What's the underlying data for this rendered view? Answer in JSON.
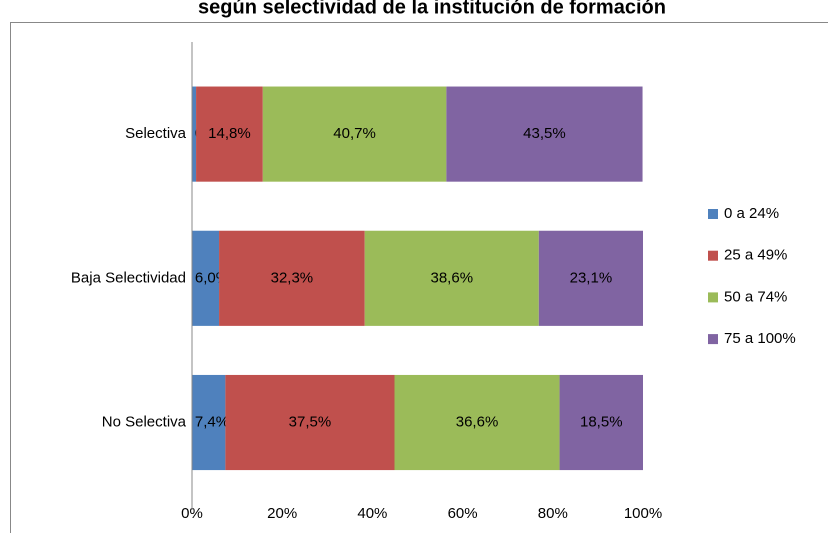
{
  "chart_data": {
    "type": "stacked_barh",
    "title": "según selectividad de la institución de formación",
    "categories": [
      "Selectiva",
      "Baja Selectividad",
      "No Selectiva"
    ],
    "series": [
      {
        "name": "0 a 24%",
        "color": "#4f81bd",
        "values": [
          0.9,
          6.0,
          7.4
        ],
        "value_labels": [
          "0,9%",
          "6,0%",
          "7,4%"
        ]
      },
      {
        "name": "25 a 49%",
        "color": "#c0504d",
        "values": [
          14.8,
          32.3,
          37.5
        ],
        "value_labels": [
          "14,8%",
          "32,3%",
          "37,5%"
        ]
      },
      {
        "name": "50 a 74%",
        "color": "#9bbb59",
        "values": [
          40.7,
          38.6,
          36.6
        ],
        "value_labels": [
          "40,7%",
          "38,6%",
          "36,6%"
        ]
      },
      {
        "name": "75 a 100%",
        "color": "#8064a2",
        "values": [
          43.5,
          23.1,
          18.5
        ],
        "value_labels": [
          "43,5%",
          "23,1%",
          "18,5%"
        ]
      }
    ],
    "xlim": [
      0,
      100
    ],
    "xticks": [
      {
        "value": 0,
        "label": "0%"
      },
      {
        "value": 20,
        "label": "20%"
      },
      {
        "value": 40,
        "label": "40%"
      },
      {
        "value": 60,
        "label": "60%"
      },
      {
        "value": 80,
        "label": "80%"
      },
      {
        "value": 100,
        "label": "100%"
      }
    ],
    "legend": "right"
  }
}
